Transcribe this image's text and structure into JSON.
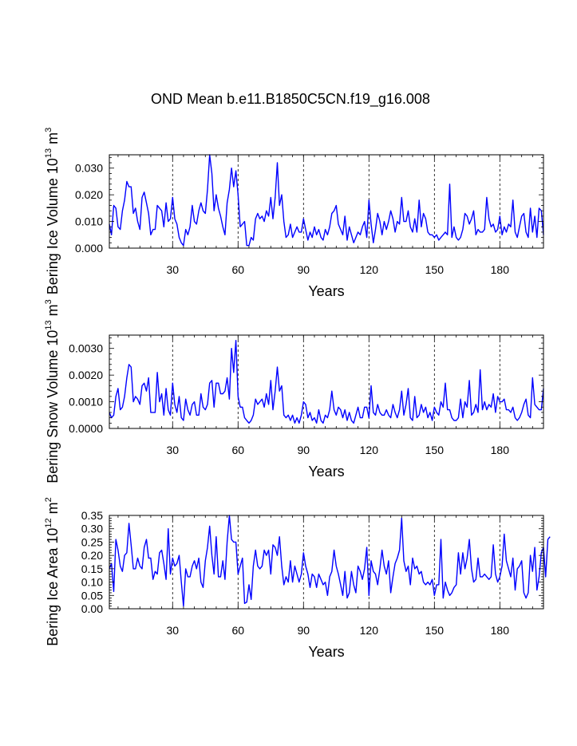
{
  "title": "OND Mean b.e11.B1850C5CN.f19_g16.008",
  "colors": {
    "line": "#0000ff",
    "axis": "#000000",
    "grid": "#000000"
  },
  "chart_data": [
    {
      "type": "line",
      "ylabel": {
        "main": "Bering Ice Volume 10",
        "sup": "13",
        "unit": " m",
        "unitsup": "3"
      },
      "xlabel": "Years",
      "xlim": [
        1,
        200
      ],
      "ylim": [
        0,
        0.035
      ],
      "xticks": [
        30,
        60,
        90,
        120,
        150,
        180
      ],
      "xtick_labels": [
        "30",
        "60",
        "90",
        "120",
        "150",
        "180"
      ],
      "yticks": [
        0,
        0.01,
        0.02,
        0.03
      ],
      "ytick_labels": [
        "0.000",
        "0.010",
        "0.020",
        "0.030"
      ],
      "grid_x": [
        30,
        60,
        90,
        120,
        150,
        180
      ],
      "series": [
        {
          "name": "Bering Ice Volume",
          "values": [
            0.009,
            0.005,
            0.016,
            0.015,
            0.008,
            0.007,
            0.014,
            0.018,
            0.025,
            0.023,
            0.023,
            0.013,
            0.015,
            0.01,
            0.007,
            0.019,
            0.021,
            0.017,
            0.013,
            0.005,
            0.007,
            0.007,
            0.016,
            0.015,
            0.014,
            0.008,
            0.017,
            0.01,
            0.011,
            0.019,
            0.011,
            0.009,
            0.004,
            0.002,
            0.001,
            0.007,
            0.005,
            0.008,
            0.016,
            0.01,
            0.009,
            0.014,
            0.017,
            0.014,
            0.013,
            0.022,
            0.035,
            0.028,
            0.014,
            0.02,
            0.015,
            0.012,
            0.008,
            0.005,
            0.017,
            0.022,
            0.03,
            0.023,
            0.029,
            0.02,
            0.008,
            0.009,
            0.01,
            0.001,
            0.001,
            0.004,
            0.003,
            0.011,
            0.013,
            0.011,
            0.012,
            0.01,
            0.014,
            0.012,
            0.019,
            0.011,
            0.019,
            0.032,
            0.016,
            0.02,
            0.01,
            0.004,
            0.005,
            0.009,
            0.004,
            0.006,
            0.008,
            0.006,
            0.006,
            0.011,
            0.007,
            0.003,
            0.006,
            0.004,
            0.008,
            0.005,
            0.007,
            0.004,
            0.003,
            0.007,
            0.005,
            0.008,
            0.013,
            0.014,
            0.016,
            0.009,
            0.007,
            0.005,
            0.012,
            0.003,
            0.008,
            0.005,
            0.002,
            0.004,
            0.006,
            0.005,
            0.008,
            0.01,
            0.004,
            0.018,
            0.009,
            0.002,
            0.007,
            0.013,
            0.01,
            0.005,
            0.01,
            0.007,
            0.01,
            0.014,
            0.011,
            0.006,
            0.01,
            0.009,
            0.019,
            0.01,
            0.01,
            0.014,
            0.008,
            0.006,
            0.011,
            0.006,
            0.018,
            0.008,
            0.013,
            0.011,
            0.006,
            0.005,
            0.005,
            0.004,
            0.005,
            0.003,
            0.004,
            0.005,
            0.006,
            0.005,
            0.024,
            0.004,
            0.008,
            0.004,
            0.003,
            0.004,
            0.007,
            0.013,
            0.012,
            0.009,
            0.011,
            0.014,
            0.005,
            0.007,
            0.006,
            0.006,
            0.007,
            0.019,
            0.011,
            0.008,
            0.009,
            0.006,
            0.007,
            0.012,
            0.005,
            0.008,
            0.006,
            0.009,
            0.008,
            0.018,
            0.006,
            0.004,
            0.008,
            0.012,
            0.013,
            0.006,
            0.004,
            0.015,
            0.006,
            0.012,
            0.004,
            0.015,
            0.014,
            0.005
          ]
        }
      ]
    },
    {
      "type": "line",
      "ylabel": {
        "main": "Bering Snow Volume 10",
        "sup": "13",
        "unit": " m",
        "unitsup": "3"
      },
      "xlabel": "Years",
      "xlim": [
        1,
        200
      ],
      "ylim": [
        0,
        0.0035
      ],
      "xticks": [
        30,
        60,
        90,
        120,
        150,
        180
      ],
      "xtick_labels": [
        "30",
        "60",
        "90",
        "120",
        "150",
        "180"
      ],
      "yticks": [
        0,
        0.001,
        0.002,
        0.003
      ],
      "ytick_labels": [
        "0.0000",
        "0.0010",
        "0.0020",
        "0.0030"
      ],
      "grid_x": [
        30,
        60,
        90,
        120,
        150,
        180
      ],
      "series": [
        {
          "name": "Bering Snow Volume",
          "values": [
            0.0006,
            0.0004,
            0.0005,
            0.0012,
            0.0015,
            0.0007,
            0.0008,
            0.0012,
            0.0019,
            0.0024,
            0.0023,
            0.001,
            0.0012,
            0.0011,
            0.0009,
            0.0016,
            0.0017,
            0.0014,
            0.0019,
            0.0006,
            0.0006,
            0.0006,
            0.0021,
            0.001,
            0.0013,
            0.0005,
            0.0015,
            0.0007,
            0.0005,
            0.0017,
            0.0009,
            0.0006,
            0.0012,
            0.0004,
            0.0003,
            0.0011,
            0.0007,
            0.0005,
            0.0009,
            0.001,
            0.0005,
            0.0005,
            0.0013,
            0.0008,
            0.0007,
            0.0009,
            0.0017,
            0.0018,
            0.0008,
            0.0017,
            0.0017,
            0.0013,
            0.0013,
            0.0014,
            0.0019,
            0.0011,
            0.003,
            0.0021,
            0.0033,
            0.0012,
            0.0008,
            0.0008,
            0.0004,
            0.0003,
            0.0002,
            0.0003,
            0.0005,
            0.0011,
            0.0009,
            0.001,
            0.0011,
            0.0008,
            0.0013,
            0.0009,
            0.0018,
            0.0007,
            0.0014,
            0.0023,
            0.0014,
            0.0016,
            0.0005,
            0.0004,
            0.0005,
            0.0003,
            0.0005,
            0.0002,
            0.0004,
            0.0002,
            0.0005,
            0.001,
            0.0009,
            0.0004,
            0.0006,
            0.0003,
            0.0004,
            0.0002,
            0.0007,
            0.0003,
            0.0002,
            0.0005,
            0.0004,
            0.0007,
            0.0014,
            0.0007,
            0.0005,
            0.0008,
            0.0007,
            0.0004,
            0.0007,
            0.0003,
            0.0006,
            0.0003,
            0.0002,
            0.0005,
            0.0008,
            0.0004,
            0.0004,
            0.0008,
            0.0008,
            0.0004,
            0.0016,
            0.0006,
            0.0005,
            0.0009,
            0.0006,
            0.0005,
            0.0005,
            0.0007,
            0.0005,
            0.0004,
            0.0009,
            0.0006,
            0.0004,
            0.0007,
            0.0014,
            0.0005,
            0.0009,
            0.0015,
            0.0004,
            0.0003,
            0.0012,
            0.0004,
            0.0005,
            0.0009,
            0.0006,
            0.0008,
            0.0004,
            0.0006,
            0.0003,
            0.0008,
            0.0006,
            0.0005,
            0.001,
            0.0008,
            0.0017,
            0.0007,
            0.0007,
            0.0004,
            0.0003,
            0.0003,
            0.0004,
            0.0011,
            0.0004,
            0.001,
            0.0008,
            0.0018,
            0.0005,
            0.0006,
            0.0009,
            0.0006,
            0.0022,
            0.0007,
            0.001,
            0.0007,
            0.0009,
            0.0008,
            0.0013,
            0.0006,
            0.0012,
            0.001,
            0.001,
            0.0011,
            0.0007,
            0.0007,
            0.0006,
            0.0008,
            0.0004,
            0.0003,
            0.0004,
            0.0006,
            0.0009,
            0.0011,
            0.0005,
            0.0004,
            0.0019,
            0.0009,
            0.0008,
            0.0007,
            0.0007,
            0.0015
          ]
        }
      ]
    },
    {
      "type": "line",
      "ylabel": {
        "main": "Bering Ice Area 10",
        "sup": "12",
        "unit": " m",
        "unitsup": "2"
      },
      "xlabel": "Years",
      "xlim": [
        1,
        200
      ],
      "ylim": [
        0,
        0.35
      ],
      "xticks": [
        30,
        60,
        90,
        120,
        150,
        180
      ],
      "xtick_labels": [
        "30",
        "60",
        "90",
        "120",
        "150",
        "180"
      ],
      "yticks": [
        0,
        0.05,
        0.1,
        0.15,
        0.2,
        0.25,
        0.3,
        0.35
      ],
      "ytick_labels": [
        "0.00",
        "0.05",
        "0.10",
        "0.15",
        "0.20",
        "0.25",
        "0.30",
        "0.35"
      ],
      "grid_x": [
        30,
        60,
        90,
        120,
        150,
        180
      ],
      "series": [
        {
          "name": "Bering Ice Area",
          "values": [
            0.15,
            0.17,
            0.065,
            0.26,
            0.22,
            0.16,
            0.14,
            0.2,
            0.21,
            0.32,
            0.24,
            0.15,
            0.15,
            0.19,
            0.16,
            0.15,
            0.23,
            0.26,
            0.19,
            0.19,
            0.11,
            0.14,
            0.13,
            0.21,
            0.22,
            0.17,
            0.11,
            0.3,
            0.13,
            0.19,
            0.16,
            0.17,
            0.2,
            0.1,
            0.01,
            0.15,
            0.12,
            0.12,
            0.16,
            0.18,
            0.15,
            0.19,
            0.1,
            0.08,
            0.18,
            0.23,
            0.31,
            0.2,
            0.13,
            0.27,
            0.12,
            0.12,
            0.18,
            0.11,
            0.25,
            0.35,
            0.26,
            0.25,
            0.25,
            0.13,
            0.16,
            0.19,
            0.02,
            0.025,
            0.09,
            0.035,
            0.16,
            0.22,
            0.16,
            0.15,
            0.16,
            0.22,
            0.2,
            0.22,
            0.13,
            0.24,
            0.23,
            0.2,
            0.27,
            0.16,
            0.09,
            0.12,
            0.1,
            0.18,
            0.1,
            0.16,
            0.13,
            0.1,
            0.13,
            0.21,
            0.16,
            0.13,
            0.08,
            0.13,
            0.12,
            0.08,
            0.13,
            0.11,
            0.09,
            0.1,
            0.05,
            0.12,
            0.14,
            0.22,
            0.16,
            0.13,
            0.09,
            0.05,
            0.14,
            0.04,
            0.06,
            0.14,
            0.09,
            0.06,
            0.16,
            0.14,
            0.11,
            0.15,
            0.23,
            0.05,
            0.18,
            0.14,
            0.13,
            0.09,
            0.15,
            0.22,
            0.16,
            0.13,
            0.18,
            0.06,
            0.12,
            0.17,
            0.19,
            0.22,
            0.34,
            0.18,
            0.14,
            0.16,
            0.09,
            0.19,
            0.15,
            0.16,
            0.13,
            0.14,
            0.1,
            0.09,
            0.1,
            0.09,
            0.11,
            0.05,
            0.09,
            0.09,
            0.26,
            0.04,
            0.1,
            0.07,
            0.05,
            0.06,
            0.08,
            0.09,
            0.21,
            0.13,
            0.21,
            0.15,
            0.19,
            0.26,
            0.15,
            0.1,
            0.11,
            0.19,
            0.12,
            0.12,
            0.13,
            0.12,
            0.11,
            0.12,
            0.24,
            0.13,
            0.1,
            0.12,
            0.16,
            0.28,
            0.18,
            0.15,
            0.12,
            0.19,
            0.07,
            0.15,
            0.16,
            0.18,
            0.06,
            0.04,
            0.06,
            0.2,
            0.14,
            0.23,
            0.07,
            0.12,
            0.21,
            0.23,
            0.12,
            0.26,
            0.27
          ]
        }
      ]
    }
  ]
}
